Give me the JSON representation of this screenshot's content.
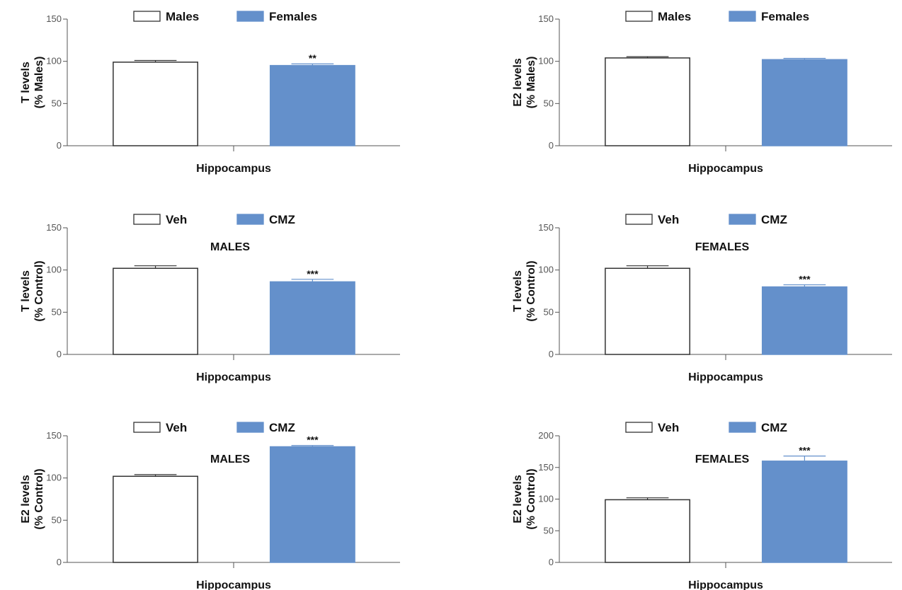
{
  "colors": {
    "bar_fill_2": "#6490cb",
    "bar_fill_1": "#ffffff",
    "bar_stroke_1": "#333333",
    "axis": "#555555"
  },
  "chart_data": [
    {
      "type": "bar",
      "title": "",
      "legend": [
        "Males",
        "Females"
      ],
      "ylabel": [
        "T levels",
        "(% Males)"
      ],
      "xlabel": "Hippocampus",
      "ylim": [
        0,
        150
      ],
      "yticks": [
        0,
        50,
        100,
        150
      ],
      "series": [
        {
          "name": "Males",
          "value": 99,
          "error": 2,
          "sig": ""
        },
        {
          "name": "Females",
          "value": 95,
          "error": 2,
          "sig": "**"
        }
      ]
    },
    {
      "type": "bar",
      "title": "",
      "legend": [
        "Males",
        "Females"
      ],
      "ylabel": [
        "E2 levels",
        "(% Males)"
      ],
      "xlabel": "Hippocampus",
      "ylim": [
        0,
        150
      ],
      "yticks": [
        0,
        50,
        100,
        150
      ],
      "series": [
        {
          "name": "Males",
          "value": 104,
          "error": 1.5,
          "sig": ""
        },
        {
          "name": "Females",
          "value": 102,
          "error": 1.5,
          "sig": ""
        }
      ]
    },
    {
      "type": "bar",
      "title": "MALES",
      "legend": [
        "Veh",
        "CMZ"
      ],
      "ylabel": [
        "T levels",
        "(% Control)"
      ],
      "xlabel": "Hippocampus",
      "ylim": [
        0,
        150
      ],
      "yticks": [
        0,
        50,
        100,
        150
      ],
      "series": [
        {
          "name": "Veh",
          "value": 102,
          "error": 3,
          "sig": ""
        },
        {
          "name": "CMZ",
          "value": 86,
          "error": 3,
          "sig": "***"
        }
      ]
    },
    {
      "type": "bar",
      "title": "FEMALES",
      "legend": [
        "Veh",
        "CMZ"
      ],
      "ylabel": [
        "T levels",
        "(% Control)"
      ],
      "xlabel": "Hippocampus",
      "ylim": [
        0,
        150
      ],
      "yticks": [
        0,
        50,
        100,
        150
      ],
      "series": [
        {
          "name": "Veh",
          "value": 102,
          "error": 3,
          "sig": ""
        },
        {
          "name": "CMZ",
          "value": 80,
          "error": 2.5,
          "sig": "***"
        }
      ]
    },
    {
      "type": "bar",
      "title": "MALES",
      "legend": [
        "Veh",
        "CMZ"
      ],
      "ylabel": [
        "E2 levels",
        "(% Control)"
      ],
      "xlabel": "Hippocampus",
      "ylim": [
        0,
        150
      ],
      "yticks": [
        0,
        50,
        100,
        150
      ],
      "series": [
        {
          "name": "Veh",
          "value": 102,
          "error": 2,
          "sig": ""
        },
        {
          "name": "CMZ",
          "value": 137,
          "error": 1.5,
          "sig": "***"
        }
      ]
    },
    {
      "type": "bar",
      "title": "FEMALES",
      "legend": [
        "Veh",
        "CMZ"
      ],
      "ylabel": [
        "E2 levels",
        "(% Control)"
      ],
      "xlabel": "Hippocampus",
      "ylim": [
        0,
        200
      ],
      "yticks": [
        0,
        50,
        100,
        150,
        200
      ],
      "series": [
        {
          "name": "Veh",
          "value": 99,
          "error": 3,
          "sig": ""
        },
        {
          "name": "CMZ",
          "value": 160,
          "error": 8,
          "sig": "***"
        }
      ]
    }
  ]
}
